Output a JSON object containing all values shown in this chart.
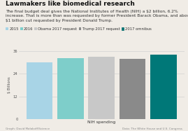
{
  "title": "Lawmakers like biomedical research",
  "subtitle": "The final budget deal gives the National Institutes of Health (NIH) a $2 billion, 6.2%\nincrease. That is more than was requested by former President Barack Obama, and above a roughly\n$1 billion cut requested by President Donald Trump.",
  "categories": [
    "2015",
    "2016",
    "Obama 2017 request",
    "Trump 2017 request",
    "2017 omnibus"
  ],
  "values": [
    30.1,
    32.1,
    33.1,
    31.8,
    34.1
  ],
  "colors": [
    "#a8d4e6",
    "#7ececa",
    "#c8c8c8",
    "#8a8a8a",
    "#007878"
  ],
  "ylabel": "$ Billions",
  "xlabel": "NIH spending",
  "ylim": [
    0,
    36
  ],
  "yticks": [
    0,
    12,
    24,
    36
  ],
  "legend_labels": [
    "2015",
    "2016",
    "Obama 2017 request",
    "Trump 2017 request",
    "2017 omnibus"
  ],
  "source_left": "Graph: David Malakoff/Science",
  "source_right": "Data: The White House and U.S. Congress",
  "background_color": "#f0ece6",
  "title_fontsize": 6.5,
  "subtitle_fontsize": 4.2,
  "axis_fontsize": 3.8,
  "legend_fontsize": 3.8
}
